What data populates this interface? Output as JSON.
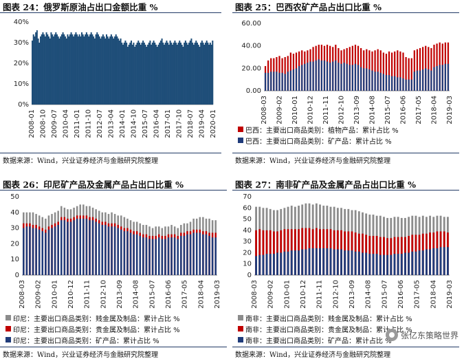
{
  "panels": [
    {
      "title": "图表 24：俄罗斯原油占出口金额比重  %",
      "source": "数据来源：Wind，兴业证券经济与金融研究院整理",
      "chart_data": {
        "type": "area",
        "ylim": [
          0,
          40
        ],
        "yticks": [
          "0%",
          "10%",
          "20%",
          "30%",
          "40%"
        ],
        "ytick_values": [
          0,
          10,
          20,
          30,
          40
        ],
        "x_labels": [
          "2008-01",
          "2008-10",
          "2009-07",
          "2010-04",
          "2011-01",
          "2011-10",
          "2012-07",
          "2013-04",
          "2014-01",
          "2014-10",
          "2015-07",
          "2016-04",
          "2017-01",
          "2017-10",
          "2018-07",
          "2019-04",
          "2020-01"
        ],
        "x_start_year": 2008,
        "series": [
          {
            "values": [
              31,
              34,
              33,
              35,
              36,
              32,
              30,
              33,
              34,
              35,
              34,
              33,
              35,
              34,
              33,
              32,
              35,
              34,
              33,
              34,
              35,
              34,
              33,
              32,
              33,
              34,
              35,
              34,
              33,
              32,
              34,
              33,
              34,
              35,
              34,
              33,
              34,
              35,
              34,
              33,
              34,
              33,
              35,
              34,
              33,
              34,
              35,
              34,
              33,
              34,
              35,
              34,
              33,
              32,
              34,
              35,
              34,
              33,
              32,
              33,
              34,
              33,
              32,
              34,
              33,
              32,
              33,
              34,
              33,
              32,
              33,
              34,
              33,
              32,
              31,
              32,
              30,
              29,
              30,
              31,
              30,
              28,
              29,
              30,
              31,
              29,
              30,
              28,
              29,
              30,
              31,
              30,
              29,
              30,
              31,
              30,
              29,
              28,
              29,
              30,
              31,
              29,
              30,
              31,
              30,
              29,
              28,
              29,
              30,
              31,
              32,
              30,
              29,
              30,
              31,
              30,
              29,
              31,
              30,
              29,
              30,
              31,
              30,
              29,
              30,
              31,
              30,
              29,
              28,
              30,
              31,
              30,
              29,
              30,
              31,
              32,
              30,
              29,
              30,
              31,
              30,
              29,
              28,
              30,
              31,
              30,
              29,
              30,
              31,
              30,
              29,
              30,
              29,
              31
            ]
          }
        ],
        "color": "#1f4e79"
      }
    },
    {
      "title": "图表 25：巴西农矿产品占出口比重  %",
      "source": "数据来源：Wind，兴业证券经济与金融研究院整理",
      "chart_data": {
        "type": "bar",
        "stacked": false,
        "ylim": [
          0,
          60
        ],
        "yticks": [
          "0.00",
          "20.00",
          "40.00",
          "60.00"
        ],
        "ytick_values": [
          0,
          20,
          40,
          60
        ],
        "x_labels": [
          "2008-03",
          "2009-02",
          "2010-01",
          "2010-12",
          "2011-11",
          "2012-10",
          "2013-09",
          "2014-08",
          "2015-07",
          "2016-06",
          "2017-05",
          "2018-04",
          "2019-03"
        ],
        "legend": [
          {
            "name": "巴西：主要出口商品类别：植物产品：累计占比  %",
            "color": "#c00000"
          },
          {
            "name": "巴西：主要出口商品类别：矿产品：累计占比  %",
            "color": "#1f3b7a"
          }
        ],
        "series": [
          {
            "name": "巴西：主要出口商品类别：植物产品：累计占比  %",
            "values": [
              22,
              27,
              29,
              29,
              30,
              31,
              29,
              30,
              31,
              34,
              33,
              34,
              35,
              36,
              35,
              36,
              37,
              39,
              40,
              41,
              41,
              40,
              41,
              40,
              39,
              41,
              38,
              36,
              37,
              38,
              39,
              40,
              41,
              40,
              38,
              36,
              37,
              36,
              35,
              36,
              37,
              36,
              34,
              33,
              35,
              34,
              35,
              36,
              35,
              34,
              30,
              29,
              29,
              36,
              37,
              38,
              39,
              40,
              39,
              38,
              41,
              42,
              43,
              42,
              43,
              43
            ]
          },
          {
            "name": "巴西：主要出口商品类别：矿产品：累计占比  %",
            "values": [
              16,
              16,
              17,
              17,
              17,
              16,
              16,
              15,
              17,
              18,
              19,
              20,
              22,
              23,
              24,
              25,
              26,
              26,
              27,
              28,
              27,
              27,
              26,
              25,
              26,
              27,
              25,
              24,
              25,
              24,
              23,
              23,
              24,
              23,
              21,
              20,
              20,
              19,
              18,
              17,
              17,
              16,
              15,
              14,
              14,
              13,
              13,
              12,
              12,
              11,
              10,
              10,
              10,
              17,
              18,
              18,
              19,
              20,
              19,
              18,
              21,
              22,
              23,
              23,
              24,
              24
            ]
          }
        ]
      }
    },
    {
      "title": "图表 26：印尼矿产品及金属产品占出口比重  %",
      "source": "数据来源：Wind，兴业证券经济与金融研究院整理",
      "chart_data": {
        "type": "bar",
        "stacked": false,
        "ylim": [
          0,
          50
        ],
        "yticks": [
          "0",
          "10",
          "20",
          "30",
          "40",
          "50"
        ],
        "ytick_values": [
          0,
          10,
          20,
          30,
          40,
          50
        ],
        "x_labels": [
          "2008-03",
          "2009-02",
          "2010-01",
          "2010-12",
          "2011-11",
          "2012-10",
          "2013-09",
          "2014-08",
          "2015-07",
          "2016-06",
          "2017-05",
          "2018-04",
          "2019-03"
        ],
        "legend": [
          {
            "name": "印尼：主要出口商品类别：贱金属及制品：累计占比  %",
            "color": "#8c8c8c"
          },
          {
            "name": "印尼：主要出口商品类别：贵金属及制品：累计占比  %",
            "color": "#c00000"
          },
          {
            "name": "印尼：主要出口商品类别：矿产品：累计占比  %",
            "color": "#1f3b7a"
          }
        ],
        "series": [
          {
            "name": "印尼：主要出口商品类别：贱金属及制品：累计占比  %",
            "values": [
              40,
              40,
              40,
              40,
              39,
              38,
              37,
              36,
              38,
              39,
              40,
              41,
              44,
              43,
              42,
              42,
              43,
              44,
              45,
              45,
              44,
              44,
              43,
              42,
              41,
              40,
              40,
              39,
              40,
              39,
              38,
              38,
              37,
              36,
              35,
              34,
              34,
              33,
              32,
              32,
              31,
              30,
              31,
              31,
              30,
              31,
              31,
              32,
              31,
              30,
              32,
              33,
              33,
              34,
              36,
              36,
              37,
              37,
              36,
              36,
              35,
              35
            ]
          },
          {
            "name": "印尼：主要出口商品类别：贵金属及制品：累计占比  %",
            "values": [
              33,
              33,
              33,
              32,
              32,
              31,
              30,
              29,
              31,
              32,
              33,
              34,
              37,
              37,
              36,
              36,
              37,
              38,
              38,
              38,
              38,
              37,
              37,
              36,
              35,
              34,
              34,
              33,
              33,
              33,
              32,
              31,
              30,
              30,
              29,
              28,
              28,
              27,
              26,
              26,
              25,
              25,
              25,
              26,
              25,
              25,
              26,
              26,
              26,
              25,
              27,
              27,
              28,
              28,
              29,
              29,
              29,
              28,
              28,
              27,
              27,
              27
            ]
          },
          {
            "name": "印尼：主要出口商品类别：矿产品：累计占比  %",
            "values": [
              30,
              31,
              31,
              30,
              30,
              29,
              28,
              27,
              29,
              30,
              31,
              32,
              35,
              35,
              34,
              34,
              35,
              36,
              36,
              36,
              36,
              35,
              35,
              34,
              33,
              32,
              32,
              31,
              31,
              31,
              30,
              29,
              28,
              28,
              27,
              26,
              26,
              25,
              24,
              24,
              23,
              23,
              23,
              24,
              23,
              23,
              24,
              24,
              24,
              23,
              25,
              25,
              26,
              26,
              27,
              27,
              27,
              26,
              26,
              25,
              24,
              24
            ]
          }
        ]
      }
    },
    {
      "title": "图表 27：南非矿产品及金属产品占出口比重  %",
      "source": "数据来源：Wind，兴业证券经济与金融研究院整理",
      "chart_data": {
        "type": "bar",
        "stacked": false,
        "ylim": [
          0,
          70
        ],
        "yticks": [
          "0",
          "10",
          "20",
          "30",
          "40",
          "50",
          "60",
          "70"
        ],
        "ytick_values": [
          0,
          10,
          20,
          30,
          40,
          50,
          60,
          70
        ],
        "x_labels": [
          "2008-03",
          "2009-02",
          "2010-01",
          "2010-12",
          "2011-11",
          "2012-10",
          "2013-09",
          "2014-08",
          "2015-07",
          "2016-06",
          "2017-05",
          "2018-04",
          "2019-03"
        ],
        "legend": [
          {
            "name": "南非：主要出口商品类别：贱金属及制品：累计占比  %",
            "color": "#8c8c8c"
          },
          {
            "name": "南非：主要出口商品类别：贵金属及制品：累计占比  %",
            "color": "#c00000"
          },
          {
            "name": "南非：主要出口商品类别：矿产品：累计占比  %",
            "color": "#1f3b7a"
          }
        ],
        "series": [
          {
            "name": "南非：主要出口商品类别：贱金属及制品：累计占比  %",
            "values": [
              61,
              61,
              60,
              60,
              59,
              58,
              58,
              59,
              60,
              61,
              62,
              61,
              62,
              63,
              64,
              64,
              63,
              64,
              63,
              62,
              62,
              61,
              61,
              60,
              60,
              59,
              59,
              58,
              58,
              57,
              56,
              55,
              54,
              54,
              53,
              53,
              52,
              51,
              51,
              52,
              52,
              51,
              51,
              52,
              53,
              53,
              52,
              53,
              52,
              53,
              52,
              53,
              53,
              52,
              52
            ]
          },
          {
            "name": "南非：主要出口商品类别：贵金属及制品：累计占比  %",
            "values": [
              40,
              41,
              40,
              40,
              40,
              39,
              39,
              40,
              41,
              41,
              41,
              41,
              41,
              42,
              42,
              42,
              41,
              42,
              41,
              41,
              41,
              41,
              40,
              40,
              40,
              39,
              39,
              39,
              38,
              37,
              37,
              36,
              35,
              35,
              35,
              34,
              34,
              33,
              33,
              34,
              34,
              34,
              34,
              35,
              36,
              36,
              36,
              37,
              37,
              38,
              38,
              39,
              39,
              39,
              38
            ]
          },
          {
            "name": "南非：主要出口商品类别：矿产品：累计占比  %",
            "values": [
              17,
              18,
              18,
              19,
              19,
              19,
              20,
              20,
              21,
              21,
              22,
              22,
              22,
              23,
              23,
              24,
              24,
              24,
              24,
              24,
              24,
              24,
              23,
              23,
              23,
              22,
              22,
              22,
              21,
              21,
              20,
              20,
              19,
              19,
              19,
              18,
              18,
              18,
              18,
              19,
              19,
              19,
              20,
              20,
              21,
              21,
              22,
              22,
              23,
              23,
              24,
              24,
              25,
              25,
              25
            ]
          }
        ]
      }
    }
  ],
  "watermark": "张亿东策略世界"
}
